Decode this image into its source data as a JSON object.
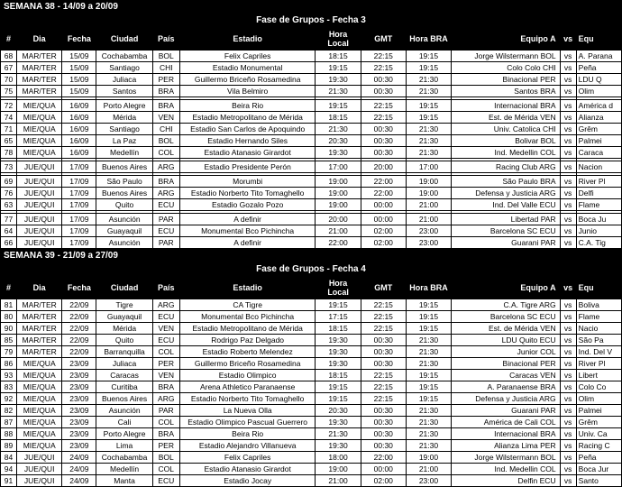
{
  "week1": {
    "label": "SEMANA 38 - 14/09 a 20/09",
    "phase": "Fase de Grupos - Fecha 3"
  },
  "week2": {
    "label": "SEMANA 39 - 21/09 a 27/09",
    "phase": "Fase de Grupos - Fecha 4"
  },
  "headers": {
    "num": "#",
    "dia": "Dia",
    "fecha": "Fecha",
    "ciudad": "Ciudad",
    "pais": "País",
    "estadio": "Estadio",
    "horalocal": "Hora Local",
    "gmt": "GMT",
    "horabra": "Hora BRA",
    "equipoa": "Equipo A",
    "vs": "vs",
    "equ": "Equ"
  },
  "rows1": [
    {
      "n": "68",
      "dia": "MAR/TER",
      "f": "15/09",
      "c": "Cochabamba",
      "p": "BOL",
      "e": "Felix Capriles",
      "hl": "18:15",
      "g": "22:15",
      "hb": "19:15",
      "ea": "Jorge Wilstermann BOL",
      "eb": "A. Parana"
    },
    {
      "n": "67",
      "dia": "MAR/TER",
      "f": "15/09",
      "c": "Santiago",
      "p": "CHI",
      "e": "Estadio Monumental",
      "hl": "19:15",
      "g": "22:15",
      "hb": "19:15",
      "ea": "Colo Colo CHI",
      "eb": "Peña"
    },
    {
      "n": "70",
      "dia": "MAR/TER",
      "f": "15/09",
      "c": "Juliaca",
      "p": "PER",
      "e": "Guillermo Briceño Rosamedina",
      "hl": "19:30",
      "g": "00:30",
      "hb": "21:30",
      "ea": "Binacional PER",
      "eb": "LDU Q"
    },
    {
      "n": "75",
      "dia": "MAR/TER",
      "f": "15/09",
      "c": "Santos",
      "p": "BRA",
      "e": "Vila Belmiro",
      "hl": "21:30",
      "g": "00:30",
      "hb": "21:30",
      "ea": "Santos BRA",
      "eb": "Olim"
    },
    {
      "n": "",
      "dia": "",
      "f": "",
      "c": "",
      "p": "",
      "e": "",
      "hl": "",
      "g": "",
      "hb": "",
      "ea": "",
      "eb": "",
      "spacer": true
    },
    {
      "n": "72",
      "dia": "MIE/QUA",
      "f": "16/09",
      "c": "Porto Alegre",
      "p": "BRA",
      "e": "Beira Rio",
      "hl": "19:15",
      "g": "22:15",
      "hb": "19:15",
      "ea": "Internacional BRA",
      "eb": "América d"
    },
    {
      "n": "74",
      "dia": "MIE/QUA",
      "f": "16/09",
      "c": "Mérida",
      "p": "VEN",
      "e": "Estadio Metropolitano de Mérida",
      "hl": "18:15",
      "g": "22:15",
      "hb": "19:15",
      "ea": "Est. de Mérida VEN",
      "eb": "Alianza"
    },
    {
      "n": "71",
      "dia": "MIE/QUA",
      "f": "16/09",
      "c": "Santiago",
      "p": "CHI",
      "e": "Estadio San Carlos de Apoquindo",
      "hl": "21:30",
      "g": "00:30",
      "hb": "21:30",
      "ea": "Univ. Catolica CHI",
      "eb": "Grêm"
    },
    {
      "n": "65",
      "dia": "MIE/QUA",
      "f": "16/09",
      "c": "La Paz",
      "p": "BOL",
      "e": "Estadio Hernando Siles",
      "hl": "20:30",
      "g": "00:30",
      "hb": "21:30",
      "ea": "Bolivar BOL",
      "eb": "Palmei"
    },
    {
      "n": "78",
      "dia": "MIE/QUA",
      "f": "16/09",
      "c": "Medellín",
      "p": "COL",
      "e": "Estadio Atanasio Girardot",
      "hl": "19:30",
      "g": "00:30",
      "hb": "21:30",
      "ea": "Ind. Medellin COL",
      "eb": "Caraca"
    },
    {
      "n": "",
      "dia": "",
      "f": "",
      "c": "",
      "p": "",
      "e": "",
      "hl": "",
      "g": "",
      "hb": "",
      "ea": "",
      "eb": "",
      "spacer": true
    },
    {
      "n": "73",
      "dia": "JUE/QUI",
      "f": "17/09",
      "c": "Buenos Aires",
      "p": "ARG",
      "e": "Estadio Presidente Perón",
      "hl": "17:00",
      "g": "20:00",
      "hb": "17:00",
      "ea": "Racing Club ARG",
      "eb": "Nacion"
    },
    {
      "n": "",
      "dia": "",
      "f": "",
      "c": "",
      "p": "",
      "e": "",
      "hl": "",
      "g": "",
      "hb": "",
      "ea": "",
      "eb": "",
      "spacer": true
    },
    {
      "n": "69",
      "dia": "JUE/QUI",
      "f": "17/09",
      "c": "São Paulo",
      "p": "BRA",
      "e": "Morumbi",
      "hl": "19:00",
      "g": "22:00",
      "hb": "19:00",
      "ea": "São Paulo BRA",
      "eb": "River Pl"
    },
    {
      "n": "76",
      "dia": "JUE/QUI",
      "f": "17/09",
      "c": "Buenos Aires",
      "p": "ARG",
      "e": "Estadio Norberto Tito Tomaghello",
      "hl": "19:00",
      "g": "22:00",
      "hb": "19:00",
      "ea": "Defensa y Justicia ARG",
      "eb": "Delfi"
    },
    {
      "n": "63",
      "dia": "JUE/QUI",
      "f": "17/09",
      "c": "Quito",
      "p": "ECU",
      "e": "Estadio Gozalo Pozo",
      "hl": "19:00",
      "g": "00:00",
      "hb": "21:00",
      "ea": "Ind. Del Valle ECU",
      "eb": "Flame"
    },
    {
      "n": "",
      "dia": "",
      "f": "",
      "c": "",
      "p": "",
      "e": "",
      "hl": "",
      "g": "",
      "hb": "",
      "ea": "",
      "eb": "",
      "spacer": true
    },
    {
      "n": "77",
      "dia": "JUE/QUI",
      "f": "17/09",
      "c": "Asunción",
      "p": "PAR",
      "e": "A definir",
      "hl": "20:00",
      "g": "00:00",
      "hb": "21:00",
      "ea": "Libertad PAR",
      "eb": "Boca Ju"
    },
    {
      "n": "64",
      "dia": "JUE/QUI",
      "f": "17/09",
      "c": "Guayaquil",
      "p": "ECU",
      "e": "Monumental Bco Pichincha",
      "hl": "21:00",
      "g": "02:00",
      "hb": "23:00",
      "ea": "Barcelona SC ECU",
      "eb": "Junio"
    },
    {
      "n": "66",
      "dia": "JUE/QUI",
      "f": "17/09",
      "c": "Asunción",
      "p": "PAR",
      "e": "A definir",
      "hl": "22:00",
      "g": "02:00",
      "hb": "23:00",
      "ea": "Guarani PAR",
      "eb": "C.A. Tig"
    }
  ],
  "rows2": [
    {
      "n": "81",
      "dia": "MAR/TER",
      "f": "22/09",
      "c": "Tigre",
      "p": "ARG",
      "e": "CA Tigre",
      "hl": "19:15",
      "g": "22:15",
      "hb": "19:15",
      "ea": "C.A. Tigre ARG",
      "eb": "Boliva"
    },
    {
      "n": "80",
      "dia": "MAR/TER",
      "f": "22/09",
      "c": "Guayaquil",
      "p": "ECU",
      "e": "Monumental Bco Pichincha",
      "hl": "17:15",
      "g": "22:15",
      "hb": "19:15",
      "ea": "Barcelona SC ECU",
      "eb": "Flame"
    },
    {
      "n": "90",
      "dia": "MAR/TER",
      "f": "22/09",
      "c": "Mérida",
      "p": "VEN",
      "e": "Estadio Metropolitano de Mérida",
      "hl": "18:15",
      "g": "22:15",
      "hb": "19:15",
      "ea": "Est. de Mérida VEN",
      "eb": "Nacio"
    },
    {
      "n": "85",
      "dia": "MAR/TER",
      "f": "22/09",
      "c": "Quito",
      "p": "ECU",
      "e": "Rodrigo Paz Delgado",
      "hl": "19:30",
      "g": "00:30",
      "hb": "21:30",
      "ea": "LDU Quito ECU",
      "eb": "São Pa"
    },
    {
      "n": "79",
      "dia": "MAR/TER",
      "f": "22/09",
      "c": "Barranquilla",
      "p": "COL",
      "e": "Estadio Roberto Melendez",
      "hl": "19:30",
      "g": "00:30",
      "hb": "21:30",
      "ea": "Junior COL",
      "eb": "Ind. Del V"
    },
    {
      "n": "86",
      "dia": "MIE/QUA",
      "f": "23/09",
      "c": "Juliaca",
      "p": "PER",
      "e": "Guillermo Briceño Rosamedina",
      "hl": "19:30",
      "g": "00:30",
      "hb": "21:30",
      "ea": "Binacional PER",
      "eb": "River Pl"
    },
    {
      "n": "93",
      "dia": "MIE/QUA",
      "f": "23/09",
      "c": "Caracas",
      "p": "VEN",
      "e": "Estadio Olimpico",
      "hl": "18:15",
      "g": "22:15",
      "hb": "19:15",
      "ea": "Caracas VEN",
      "eb": "Libert"
    },
    {
      "n": "83",
      "dia": "MIE/QUA",
      "f": "23/09",
      "c": "Curitiba",
      "p": "BRA",
      "e": "Arena Athletico Paranaense",
      "hl": "19:15",
      "g": "22:15",
      "hb": "19:15",
      "ea": "A. Paranaense BRA",
      "eb": "Colo Co"
    },
    {
      "n": "92",
      "dia": "MIE/QUA",
      "f": "23/09",
      "c": "Buenos Aires",
      "p": "ARG",
      "e": "Estadio Norberto Tito Tomaghello",
      "hl": "19:15",
      "g": "22:15",
      "hb": "19:15",
      "ea": "Defensa y Justicia ARG",
      "eb": "Olim"
    },
    {
      "n": "82",
      "dia": "MIE/QUA",
      "f": "23/09",
      "c": "Asunción",
      "p": "PAR",
      "e": "La Nueva Olla",
      "hl": "20:30",
      "g": "00:30",
      "hb": "21:30",
      "ea": "Guarani PAR",
      "eb": "Palmei"
    },
    {
      "n": "87",
      "dia": "MIE/QUA",
      "f": "23/09",
      "c": "Cali",
      "p": "COL",
      "e": "Estadio Olimpico Pascual Guerrero",
      "hl": "19:30",
      "g": "00:30",
      "hb": "21:30",
      "ea": "América de Cali COL",
      "eb": "Grêm"
    },
    {
      "n": "88",
      "dia": "MIE/QUA",
      "f": "23/09",
      "c": "Porto Alegre",
      "p": "BRA",
      "e": "Beira Rio",
      "hl": "21:30",
      "g": "00:30",
      "hb": "21:30",
      "ea": "Internacional BRA",
      "eb": "Univ. Ca"
    },
    {
      "n": "89",
      "dia": "MIE/QUA",
      "f": "23/09",
      "c": "Lima",
      "p": "PER",
      "e": "Estadio Alejandro Villanueva",
      "hl": "19:30",
      "g": "00:30",
      "hb": "21:30",
      "ea": "Alianza Lima PER",
      "eb": "Racing C"
    },
    {
      "n": "84",
      "dia": "JUE/QUI",
      "f": "24/09",
      "c": "Cochabamba",
      "p": "BOL",
      "e": "Felix Capriles",
      "hl": "18:00",
      "g": "22:00",
      "hb": "19:00",
      "ea": "Jorge Wilstermann BOL",
      "eb": "Peña"
    },
    {
      "n": "94",
      "dia": "JUE/QUI",
      "f": "24/09",
      "c": "Medellín",
      "p": "COL",
      "e": "Estadio Atanasio Girardot",
      "hl": "19:00",
      "g": "00:00",
      "hb": "21:00",
      "ea": "Ind. Medellin COL",
      "eb": "Boca Jur"
    },
    {
      "n": "91",
      "dia": "JUE/QUI",
      "f": "24/09",
      "c": "Manta",
      "p": "ECU",
      "e": "Estadio Jocay",
      "hl": "21:00",
      "g": "02:00",
      "hb": "23:00",
      "ea": "Delfin ECU",
      "eb": "Santo"
    }
  ]
}
